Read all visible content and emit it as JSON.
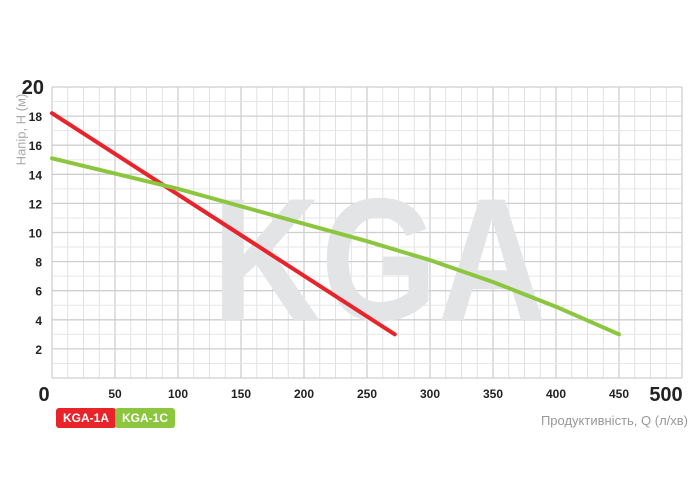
{
  "chart_data": {
    "type": "line",
    "watermark": "KGA",
    "xlabel": "Продуктивність, Q (л/хв)",
    "ylabel": "Напір, H (м)",
    "xlim": [
      0,
      500
    ],
    "ylim": [
      0,
      20
    ],
    "xticks": [
      "0",
      "50",
      "100",
      "150",
      "200",
      "250",
      "300",
      "350",
      "400",
      "450",
      "500"
    ],
    "yticks": [
      "2",
      "4",
      "6",
      "8",
      "10",
      "12",
      "14",
      "16",
      "18",
      "20"
    ],
    "grid": true,
    "series": [
      {
        "name": "KGA-1A",
        "color": "#e8232a",
        "x": [
          0,
          272
        ],
        "y": [
          18.2,
          3
        ]
      },
      {
        "name": "KGA-1C",
        "color": "#8cc63f",
        "x": [
          0,
          100,
          200,
          250,
          300,
          350,
          400,
          450
        ],
        "y": [
          15.1,
          13.0,
          10.6,
          9.4,
          8.1,
          6.6,
          4.9,
          3.0
        ]
      }
    ]
  }
}
